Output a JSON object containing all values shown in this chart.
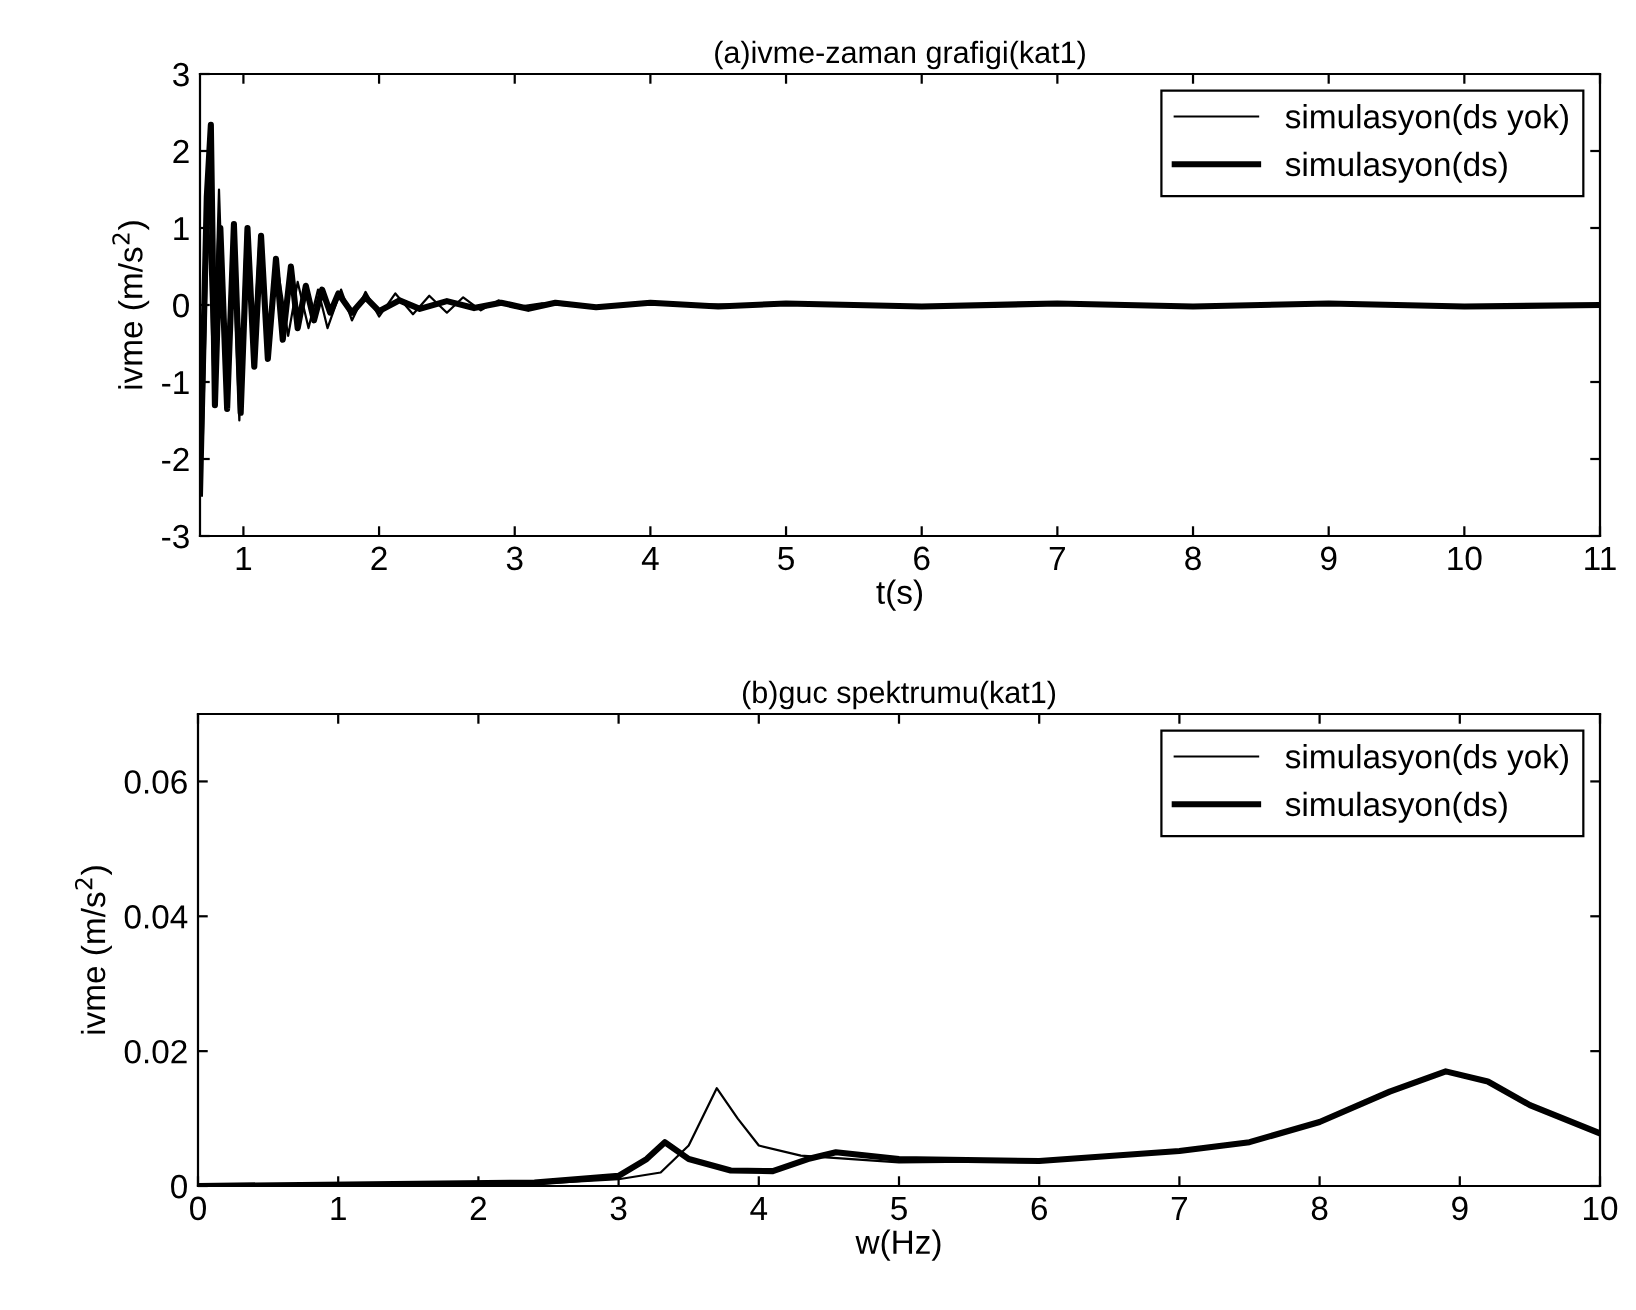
{
  "chart_data": [
    {
      "type": "line",
      "title": "(a)ivme-zaman grafigi(kat1)",
      "xlabel": "t(s)",
      "ylabel": "ivme (m/s$^{2}$)",
      "xlim": [
        0.68,
        11
      ],
      "ylim": [
        -3,
        3
      ],
      "xticks": [
        1,
        2,
        3,
        4,
        5,
        6,
        7,
        8,
        9,
        10,
        11
      ],
      "yticks": [
        -3,
        -2,
        -1,
        0,
        1,
        2,
        3
      ],
      "grid": false,
      "legend": "top right",
      "marker": "none",
      "line_style": "solid",
      "series": [
        {
          "name": "simulasyon(ds yok)",
          "color": "#000000",
          "x": [
            0.7,
            0.74,
            0.78,
            0.82,
            0.87,
            0.92,
            0.97,
            1.02,
            1.07,
            1.12,
            1.17,
            1.25,
            1.33,
            1.4,
            1.48,
            1.55,
            1.62,
            1.72,
            1.8,
            1.9,
            2.0,
            2.12,
            2.25,
            2.37,
            2.5,
            2.62,
            2.75,
            2.88,
            3.0,
            3.2,
            3.5,
            4.0,
            5.0,
            11.0
          ],
          "values": [
            -1.8,
            1.2,
            -1.0,
            1.5,
            -1.2,
            0.9,
            -1.5,
            1.0,
            -0.7,
            0.9,
            -0.6,
            0.5,
            -0.4,
            0.3,
            -0.3,
            0.2,
            -0.3,
            0.2,
            -0.2,
            0.17,
            -0.15,
            0.15,
            -0.12,
            0.12,
            -0.1,
            0.1,
            -0.07,
            0.06,
            -0.03,
            0.02,
            -0.02,
            0.01,
            0,
            0
          ]
        },
        {
          "name": "simulasyon(ds)",
          "color": "#000000",
          "x": [
            0.68,
            0.73,
            0.76,
            0.79,
            0.83,
            0.88,
            0.93,
            0.98,
            1.03,
            1.08,
            1.13,
            1.18,
            1.24,
            1.29,
            1.35,
            1.4,
            1.46,
            1.52,
            1.58,
            1.64,
            1.7,
            1.8,
            1.9,
            2.0,
            2.15,
            2.3,
            2.5,
            2.7,
            2.9,
            3.1,
            3.3,
            3.6,
            4.0,
            4.5,
            5.0,
            6.0,
            7.0,
            8.0,
            9.0,
            10.0,
            11.0
          ],
          "values": [
            -2.45,
            1.4,
            2.34,
            -1.3,
            1.0,
            -1.35,
            1.05,
            -1.4,
            1.0,
            -0.8,
            0.9,
            -0.7,
            0.6,
            -0.45,
            0.5,
            -0.3,
            0.25,
            -0.2,
            0.2,
            -0.1,
            0.15,
            -0.1,
            0.1,
            -0.08,
            0.06,
            -0.05,
            0.05,
            -0.04,
            0.03,
            -0.05,
            0.03,
            -0.03,
            0.03,
            -0.02,
            0.02,
            -0.02,
            0.02,
            -0.02,
            0.02,
            -0.02,
            0
          ]
        }
      ]
    },
    {
      "type": "line",
      "title": "(b)guc spektrumu(kat1)",
      "xlabel": "w(Hz)",
      "ylabel": "ivme (m/s$^{2}$)",
      "xlim": [
        0,
        10
      ],
      "ylim": [
        0,
        0.07
      ],
      "xticks": [
        0,
        1,
        2,
        3,
        4,
        5,
        6,
        7,
        8,
        9,
        10
      ],
      "yticks": [
        0,
        0.02,
        0.04,
        0.06
      ],
      "grid": false,
      "legend": "top right",
      "marker": "none",
      "line_style": "solid",
      "series": [
        {
          "name": "simulasyon(ds yok)",
          "color": "#000000",
          "x": [
            0,
            2.4,
            3.0,
            3.3,
            3.5,
            3.7,
            3.85,
            4.0,
            4.3,
            5.0,
            6.0,
            7.0,
            7.5,
            8.0,
            8.5,
            8.9,
            9.2,
            9.5,
            10.0
          ],
          "values": [
            0,
            0.0003,
            0.001,
            0.002,
            0.006,
            0.0145,
            0.01,
            0.006,
            0.0045,
            0.0035,
            0.0037,
            0.0052,
            0.0065,
            0.0095,
            0.014,
            0.017,
            0.0155,
            0.012,
            0.0078
          ]
        },
        {
          "name": "simulasyon(ds)",
          "color": "#000000",
          "x": [
            0,
            2.4,
            3.0,
            3.2,
            3.33,
            3.5,
            3.8,
            4.1,
            4.35,
            4.55,
            5.0,
            6.0,
            7.0,
            7.5,
            8.0,
            8.5,
            8.9,
            9.2,
            9.5,
            10.0
          ],
          "values": [
            0,
            0.0005,
            0.0015,
            0.004,
            0.0065,
            0.004,
            0.0023,
            0.0022,
            0.004,
            0.005,
            0.004,
            0.0037,
            0.0052,
            0.0065,
            0.0095,
            0.014,
            0.017,
            0.0155,
            0.012,
            0.0078
          ]
        }
      ]
    }
  ]
}
